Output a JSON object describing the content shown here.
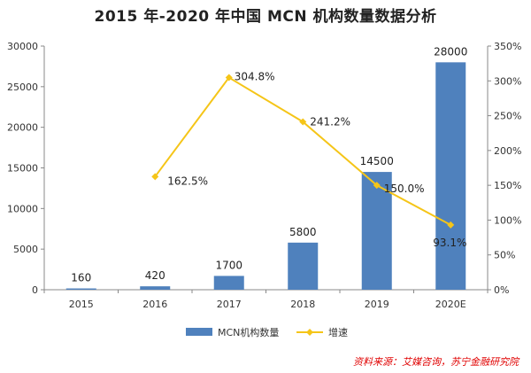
{
  "chart_data": {
    "type": "bar+line",
    "title": "2015 年-2020 年中国 MCN 机构数量数据分析",
    "categories": [
      "2015",
      "2016",
      "2017",
      "2018",
      "2019",
      "2020E"
    ],
    "series": [
      {
        "name": "MCN机构数量",
        "type": "bar",
        "axis": "left",
        "values": [
          160,
          420,
          1700,
          5800,
          14500,
          28000
        ],
        "labels": [
          "160",
          "420",
          "1700",
          "5800",
          "14500",
          "28000"
        ],
        "color": "#4f81bd"
      },
      {
        "name": "增速",
        "type": "line",
        "axis": "right",
        "values": [
          null,
          162.5,
          304.8,
          241.2,
          150.0,
          93.1
        ],
        "labels": [
          "",
          "162.5%",
          "304.8%",
          "241.2%",
          "150.0%",
          "93.1%"
        ],
        "color": "#f5c518"
      }
    ],
    "y_left": {
      "min": 0,
      "max": 30000,
      "ticks": [
        0,
        5000,
        10000,
        15000,
        20000,
        25000,
        30000
      ],
      "tick_labels": [
        "0",
        "5000",
        "10000",
        "15000",
        "20000",
        "25000",
        "30000"
      ]
    },
    "y_right": {
      "min": 0,
      "max": 350,
      "ticks": [
        0,
        50,
        100,
        150,
        200,
        250,
        300,
        350
      ],
      "tick_labels": [
        "0%",
        "50%",
        "100%",
        "150%",
        "200%",
        "250%",
        "300%",
        "350%"
      ]
    },
    "grid": false,
    "legend": "bottom",
    "source": "资料来源：艾媒咨询，苏宁金融研究院"
  }
}
